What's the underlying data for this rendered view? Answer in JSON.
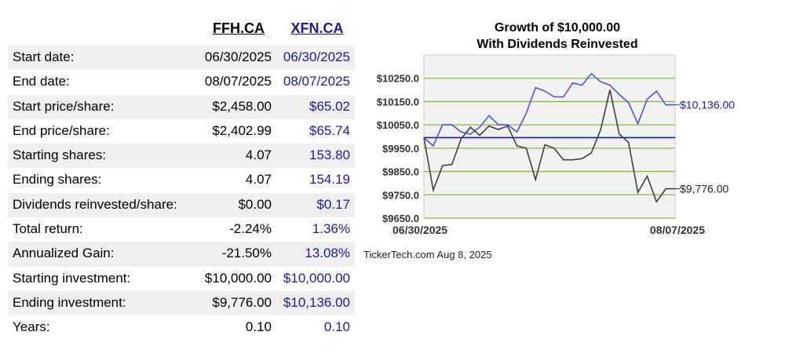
{
  "table": {
    "headers": [
      "FFH.CA",
      "XFN.CA"
    ],
    "rows": [
      {
        "label": "Start date:",
        "a": "06/30/2025",
        "b": "06/30/2025"
      },
      {
        "label": "End date:",
        "a": "08/07/2025",
        "b": "08/07/2025"
      },
      {
        "label": "Start price/share:",
        "a": "$2,458.00",
        "b": "$65.02"
      },
      {
        "label": "End price/share:",
        "a": "$2,402.99",
        "b": "$65.74"
      },
      {
        "label": "Starting shares:",
        "a": "4.07",
        "b": "153.80"
      },
      {
        "label": "Ending shares:",
        "a": "4.07",
        "b": "154.19"
      },
      {
        "label": "Dividends reinvested/share:",
        "a": "$0.00",
        "b": "$0.17"
      },
      {
        "label": "Total return:",
        "a": "-2.24%",
        "b": "1.36%"
      },
      {
        "label": "Annualized Gain:",
        "a": "-21.50%",
        "b": "13.08%"
      },
      {
        "label": "Starting investment:",
        "a": "$10,000.00",
        "b": "$10,000.00"
      },
      {
        "label": "Ending investment:",
        "a": "$9,776.00",
        "b": "$10,136.00"
      },
      {
        "label": "Years:",
        "a": "0.10",
        "b": "0.10"
      }
    ]
  },
  "chart_data": {
    "type": "line",
    "title_lines": [
      "Growth of $10,000.00",
      "With Dividends Reinvested"
    ],
    "ylim": [
      9650,
      10350
    ],
    "y_ticks": [
      10250,
      10150,
      10050,
      9950,
      9850,
      9750,
      9650
    ],
    "y_tick_labels": [
      "$10250.0",
      "$10150.0",
      "$10050.0",
      "$9950.0",
      "$9850.0",
      "$9750.0",
      "$9650.0"
    ],
    "x_labels": [
      "06/30/2025",
      "08/07/2025"
    ],
    "baseline": 9995,
    "colors": {
      "line_b": "#4a55e8",
      "line_a": "#404040",
      "baseline": "#1a1a9a",
      "grid": "#8cb83c",
      "plot_bg": "#f2f2f2"
    },
    "series": [
      {
        "values": [
          9995,
          9960,
          10050,
          10050,
          10020,
          10010,
          10040,
          10090,
          10050,
          10050,
          10020,
          10100,
          10210,
          10195,
          10170,
          10170,
          10230,
          10220,
          10270,
          10235,
          10220,
          10180,
          10145,
          10055,
          10160,
          10195,
          10136,
          10136
        ],
        "end_label": "$10,136.00"
      },
      {
        "values": [
          9995,
          9770,
          9875,
          9880,
          9990,
          10040,
          10005,
          10045,
          10030,
          10045,
          9960,
          9950,
          9815,
          9965,
          9950,
          9900,
          9900,
          9905,
          9930,
          10030,
          10200,
          10010,
          9975,
          9760,
          9830,
          9720,
          9776,
          9776
        ],
        "end_label": "$9,776.00"
      }
    ]
  },
  "credit": "TickerTech.com  Aug 8, 2025"
}
